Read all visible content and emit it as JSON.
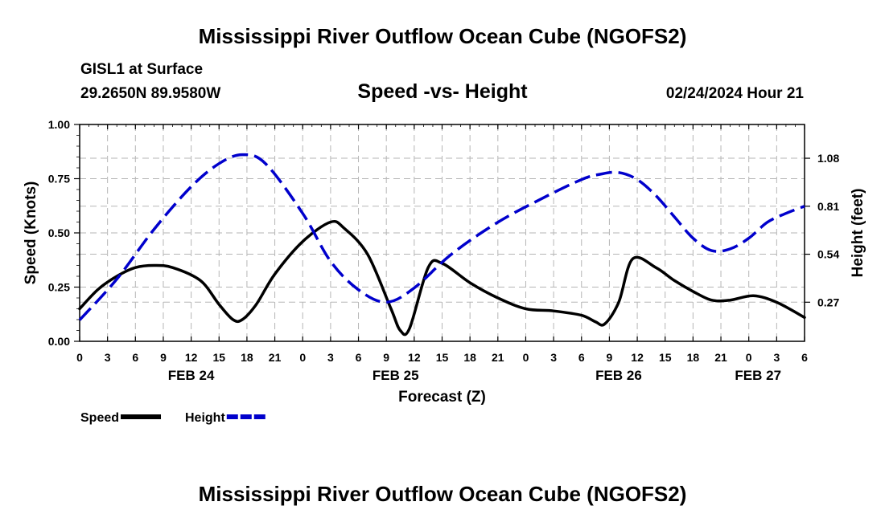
{
  "page": {
    "title_top": "Mississippi River Outflow Ocean Cube (NGOFS2)",
    "title_bottom": "Mississippi River Outflow Ocean Cube (NGOFS2)",
    "station": "GISL1 at Surface",
    "coords": "29.2650N  89.9580W",
    "subtitle": "Speed -vs- Height",
    "date": "02/24/2024 Hour 21"
  },
  "chart_data": {
    "type": "line",
    "title": "Speed -vs- Height",
    "xlabel": "Forecast (Z)",
    "ylabel": "Speed (Knots)",
    "y2label": "Height (feet)",
    "xlim": [
      0,
      78
    ],
    "ylim": [
      0,
      1.0
    ],
    "y2lim": [
      0.05,
      1.27
    ],
    "yticks": [
      0,
      0.25,
      0.5,
      0.75,
      1.0
    ],
    "ytick_labels": [
      "0.00",
      "0.25",
      "0.50",
      "0.75",
      "1.00"
    ],
    "y2ticks": [
      0.27,
      0.54,
      0.81,
      1.08
    ],
    "y2tick_labels": [
      "0.27",
      "0.54",
      "0.81",
      "1.08"
    ],
    "xtick_labels": [
      "0",
      "3",
      "6",
      "9",
      "12",
      "15",
      "18",
      "21",
      "0",
      "3",
      "6",
      "9",
      "12",
      "15",
      "18",
      "21",
      "0",
      "3",
      "6",
      "9",
      "12",
      "15",
      "18",
      "21",
      "0",
      "3",
      "6"
    ],
    "day_labels": [
      {
        "x": 12,
        "label": "FEB 24"
      },
      {
        "x": 34,
        "label": "FEB 25"
      },
      {
        "x": 58,
        "label": "FEB 26"
      },
      {
        "x": 73,
        "label": "FEB 27"
      }
    ],
    "grid": true,
    "legend": "bottom-left",
    "series": [
      {
        "name": "Speed",
        "axis": "left",
        "color": "#000000",
        "dash": "solid",
        "x": [
          0,
          2,
          4,
          6,
          8,
          10,
          13,
          15,
          16.5,
          17.5,
          19,
          21,
          24,
          27,
          28.5,
          31,
          33.5,
          34.5,
          35.5,
          37.5,
          39,
          42,
          45,
          48,
          51,
          54,
          55.5,
          56.5,
          58,
          59.5,
          62,
          64,
          66,
          68,
          70,
          72.5,
          75,
          78
        ],
        "values": [
          0.15,
          0.24,
          0.3,
          0.34,
          0.35,
          0.34,
          0.28,
          0.17,
          0.1,
          0.1,
          0.17,
          0.31,
          0.46,
          0.55,
          0.52,
          0.4,
          0.15,
          0.05,
          0.06,
          0.34,
          0.36,
          0.27,
          0.2,
          0.15,
          0.14,
          0.12,
          0.09,
          0.08,
          0.18,
          0.38,
          0.34,
          0.28,
          0.23,
          0.19,
          0.19,
          0.21,
          0.18,
          0.11
        ]
      },
      {
        "name": "Height",
        "axis": "right",
        "color": "#0000cc",
        "dash": "dashed",
        "x": [
          0,
          4,
          8,
          12,
          15,
          17.5,
          20,
          24,
          27,
          30,
          33,
          36,
          40,
          45,
          50,
          54,
          56,
          58,
          60,
          62,
          64,
          66,
          68,
          70,
          72,
          74,
          76,
          78
        ],
        "values": [
          0.17,
          0.4,
          0.68,
          0.92,
          1.05,
          1.1,
          1.05,
          0.77,
          0.5,
          0.34,
          0.27,
          0.35,
          0.54,
          0.72,
          0.86,
          0.96,
          0.99,
          1.0,
          0.96,
          0.87,
          0.75,
          0.63,
          0.56,
          0.57,
          0.63,
          0.72,
          0.77,
          0.81
        ]
      }
    ]
  }
}
